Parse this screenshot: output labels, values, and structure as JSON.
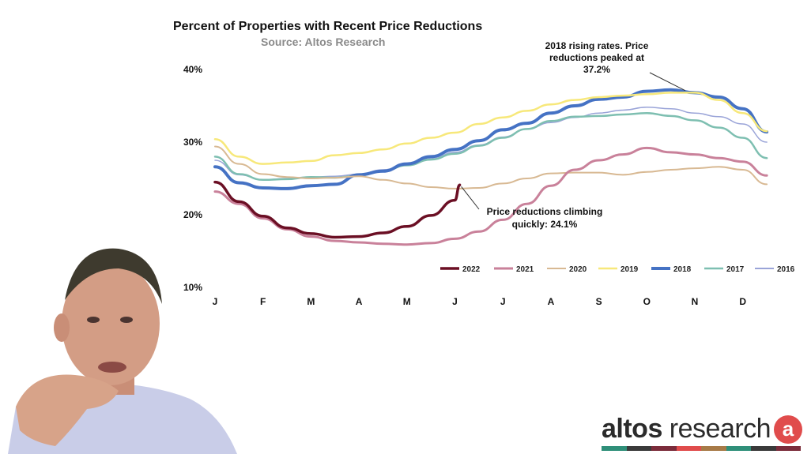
{
  "chart_data": {
    "type": "line",
    "title": "Percent of Properties with Recent Price Reductions",
    "subtitle": "Source: Altos Research",
    "categories": [
      "J",
      "F",
      "M",
      "A",
      "M",
      "J",
      "J",
      "A",
      "S",
      "O",
      "N",
      "D"
    ],
    "y_tick_labels": [
      "40%",
      "30%",
      "20%",
      "10%"
    ],
    "ylim": [
      10,
      40
    ],
    "grid": false,
    "legend_position": "bottom-right",
    "series": [
      {
        "name": "2022",
        "color": "#6b0f24",
        "width": 3.5,
        "points": [
          [
            0,
            24.5
          ],
          [
            0.5,
            21.8
          ],
          [
            1,
            19.8
          ],
          [
            1.5,
            18.2
          ],
          [
            2,
            17.4
          ],
          [
            2.5,
            16.9
          ],
          [
            3,
            17.0
          ],
          [
            3.5,
            17.5
          ],
          [
            4,
            18.4
          ],
          [
            4.5,
            19.9
          ],
          [
            5,
            22.0
          ],
          [
            5.1,
            24.1
          ]
        ]
      },
      {
        "name": "2021",
        "color": "#c9819a",
        "width": 3,
        "points": [
          [
            0,
            23.2
          ],
          [
            0.5,
            21.5
          ],
          [
            1,
            19.5
          ],
          [
            1.5,
            18.0
          ],
          [
            2,
            17.0
          ],
          [
            2.5,
            16.4
          ],
          [
            3,
            16.2
          ],
          [
            3.5,
            16.0
          ],
          [
            4,
            15.9
          ],
          [
            4.5,
            16.1
          ],
          [
            5,
            16.7
          ],
          [
            5.5,
            17.7
          ],
          [
            6,
            19.3
          ],
          [
            6.5,
            21.5
          ],
          [
            7,
            24.0
          ],
          [
            7.5,
            26.2
          ],
          [
            8,
            27.5
          ],
          [
            8.5,
            28.3
          ],
          [
            9,
            29.2
          ],
          [
            9.5,
            28.6
          ],
          [
            10,
            28.3
          ],
          [
            10.5,
            27.8
          ],
          [
            11,
            27.3
          ],
          [
            11.5,
            25.4
          ]
        ]
      },
      {
        "name": "2020",
        "color": "#d8b993",
        "width": 2,
        "points": [
          [
            0,
            29.4
          ],
          [
            0.5,
            27.0
          ],
          [
            1,
            25.6
          ],
          [
            1.5,
            25.2
          ],
          [
            2,
            25.0
          ],
          [
            2.5,
            25.1
          ],
          [
            3,
            25.3
          ],
          [
            3.5,
            24.8
          ],
          [
            4,
            24.3
          ],
          [
            4.5,
            23.8
          ],
          [
            5,
            23.6
          ],
          [
            5.5,
            23.7
          ],
          [
            6,
            24.3
          ],
          [
            6.5,
            25.0
          ],
          [
            7,
            25.7
          ],
          [
            7.5,
            25.8
          ],
          [
            8,
            25.8
          ],
          [
            8.5,
            25.5
          ],
          [
            9,
            25.9
          ],
          [
            9.5,
            26.2
          ],
          [
            10,
            26.4
          ],
          [
            10.5,
            26.6
          ],
          [
            11,
            26.2
          ],
          [
            11.5,
            24.2
          ]
        ]
      },
      {
        "name": "2019",
        "color": "#f7e87a",
        "width": 2.5,
        "points": [
          [
            0,
            30.4
          ],
          [
            0.5,
            28.0
          ],
          [
            1,
            27.0
          ],
          [
            1.5,
            27.2
          ],
          [
            2,
            27.4
          ],
          [
            2.5,
            28.2
          ],
          [
            3,
            28.5
          ],
          [
            3.5,
            29.0
          ],
          [
            4,
            29.8
          ],
          [
            4.5,
            30.6
          ],
          [
            5,
            31.3
          ],
          [
            5.5,
            32.5
          ],
          [
            6,
            33.4
          ],
          [
            6.5,
            34.3
          ],
          [
            7,
            35.2
          ],
          [
            7.5,
            35.8
          ],
          [
            8,
            36.2
          ],
          [
            8.5,
            36.4
          ],
          [
            9,
            36.6
          ],
          [
            9.5,
            36.8
          ],
          [
            10,
            36.8
          ],
          [
            10.5,
            35.8
          ],
          [
            11,
            34.0
          ],
          [
            11.5,
            31.5
          ]
        ]
      },
      {
        "name": "2018",
        "color": "#4572c4",
        "width": 4,
        "points": [
          [
            0,
            26.6
          ],
          [
            0.5,
            24.4
          ],
          [
            1,
            23.7
          ],
          [
            1.5,
            23.6
          ],
          [
            2,
            24.0
          ],
          [
            2.5,
            24.2
          ],
          [
            3,
            25.5
          ],
          [
            3.5,
            26.0
          ],
          [
            4,
            27.0
          ],
          [
            4.5,
            28.0
          ],
          [
            5,
            29.0
          ],
          [
            5.5,
            30.2
          ],
          [
            6,
            31.7
          ],
          [
            6.5,
            32.6
          ],
          [
            7,
            34.0
          ],
          [
            7.5,
            35.0
          ],
          [
            8,
            35.9
          ],
          [
            8.5,
            36.2
          ],
          [
            9,
            37.0
          ],
          [
            9.5,
            37.2
          ],
          [
            10,
            36.8
          ],
          [
            10.5,
            36.2
          ],
          [
            11,
            34.6
          ],
          [
            11.5,
            31.4
          ]
        ]
      },
      {
        "name": "2017",
        "color": "#7ebfb1",
        "width": 2.5,
        "points": [
          [
            0,
            28.0
          ],
          [
            0.5,
            25.6
          ],
          [
            1,
            24.8
          ],
          [
            1.5,
            24.9
          ],
          [
            2,
            25.2
          ],
          [
            2.5,
            25.1
          ],
          [
            3,
            25.4
          ],
          [
            3.5,
            26.0
          ],
          [
            4,
            26.8
          ],
          [
            4.5,
            27.6
          ],
          [
            5,
            28.4
          ],
          [
            5.5,
            29.5
          ],
          [
            6,
            30.6
          ],
          [
            6.5,
            31.8
          ],
          [
            7,
            32.9
          ],
          [
            7.5,
            33.5
          ],
          [
            8,
            33.6
          ],
          [
            8.5,
            33.8
          ],
          [
            9,
            34.0
          ],
          [
            9.5,
            33.6
          ],
          [
            10,
            33.0
          ],
          [
            10.5,
            32.0
          ],
          [
            11,
            30.6
          ],
          [
            11.5,
            27.8
          ]
        ]
      },
      {
        "name": "2016",
        "color": "#9aa4d8",
        "width": 1.5,
        "points": [
          [
            0,
            27.5
          ],
          [
            0.5,
            25.5
          ],
          [
            1,
            24.8
          ],
          [
            1.5,
            25.0
          ],
          [
            2,
            25.2
          ],
          [
            2.5,
            25.3
          ],
          [
            3,
            25.6
          ],
          [
            3.5,
            26.2
          ],
          [
            4,
            26.9
          ],
          [
            4.5,
            27.7
          ],
          [
            5,
            28.6
          ],
          [
            5.5,
            29.6
          ],
          [
            6,
            30.7
          ],
          [
            6.5,
            31.8
          ],
          [
            7,
            32.7
          ],
          [
            7.5,
            33.4
          ],
          [
            8,
            34.0
          ],
          [
            8.5,
            34.4
          ],
          [
            9,
            34.8
          ],
          [
            9.5,
            34.6
          ],
          [
            10,
            34.0
          ],
          [
            10.5,
            33.5
          ],
          [
            11,
            32.5
          ],
          [
            11.5,
            30.0
          ]
        ]
      }
    ],
    "annotations": [
      {
        "lines": [
          "2018 rising rates. Price",
          "reductions peaked at",
          "37.2%"
        ],
        "target": [
          9.8,
          37.1
        ]
      },
      {
        "lines": [
          "Price reductions climbing",
          "quickly: 24.1%"
        ],
        "target": [
          5.1,
          24.1
        ]
      }
    ]
  },
  "brand": {
    "name_bold": "altos",
    "name_rest": " research",
    "badge": "a",
    "stripe_colors": [
      "#2f8f79",
      "#3a3a3a",
      "#7b2c3b",
      "#e04c4c",
      "#a77a47",
      "#2f8f79",
      "#3a3a3a",
      "#7b2c3b"
    ]
  },
  "presenter": {
    "icon": "person-video-icon"
  }
}
